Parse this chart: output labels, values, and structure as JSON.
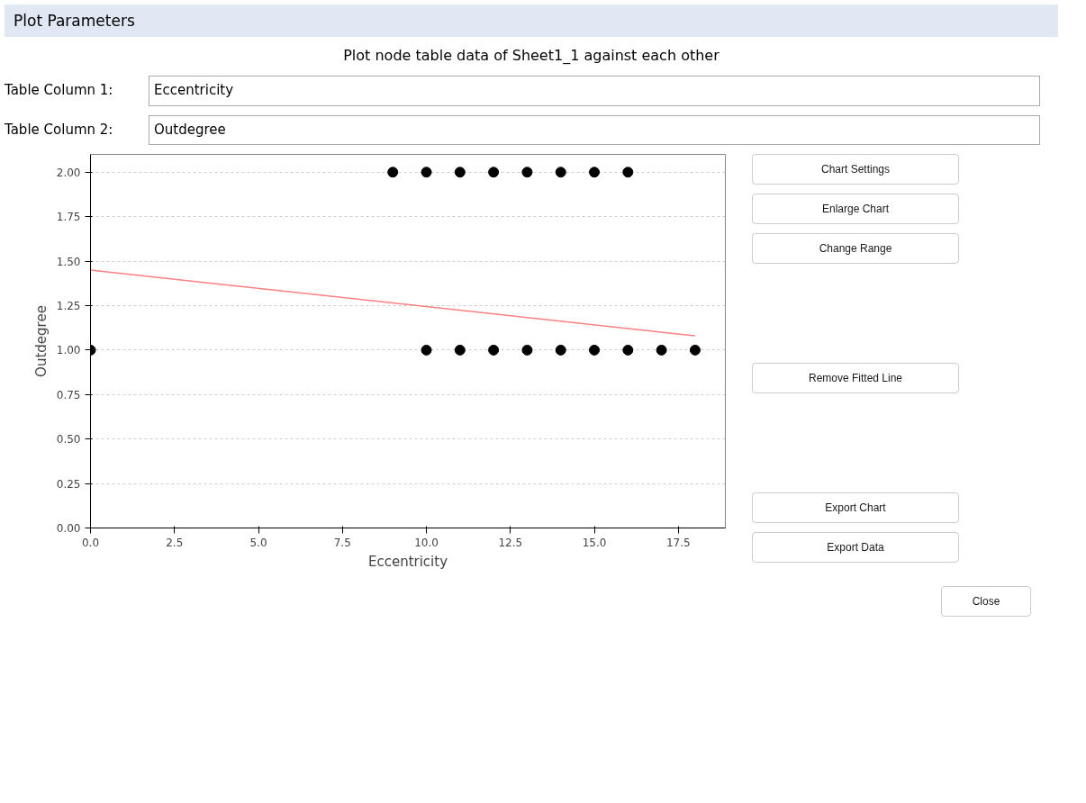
{
  "chart_data": {
    "type": "scatter",
    "title": "Plot node table data of Sheet1_1 against each other",
    "xlabel": "Eccentricity",
    "ylabel": "Outdegree",
    "series": [
      {
        "color": "#000000",
        "marker": "circle",
        "x": [
          9,
          10,
          11,
          12,
          13,
          14,
          15,
          16,
          0,
          10,
          11,
          12,
          13,
          14,
          15,
          16,
          17,
          18
        ],
        "values": [
          2,
          2,
          2,
          2,
          2,
          2,
          2,
          2,
          1,
          1,
          1,
          1,
          1,
          1,
          1,
          1,
          1,
          1
        ]
      },
      {
        "type": "line",
        "color": "#ff8080",
        "line_style": "solid",
        "x": [
          0,
          18
        ],
        "values": [
          1.45,
          1.08
        ]
      }
    ],
    "xlim": [
      0,
      18.9
    ],
    "ylim": [
      0,
      2.1
    ],
    "xticks": [
      {
        "value": 0,
        "label": "0.0"
      },
      {
        "value": 2.5,
        "label": "2.5"
      },
      {
        "value": 5,
        "label": "5.0"
      },
      {
        "value": 7.5,
        "label": "7.5"
      },
      {
        "value": 10,
        "label": "10.0"
      },
      {
        "value": 12.5,
        "label": "12.5"
      },
      {
        "value": 15,
        "label": "15.0"
      },
      {
        "value": 17.5,
        "label": "17.5"
      }
    ],
    "yticks": [
      {
        "value": 0,
        "label": "0.00"
      },
      {
        "value": 0.25,
        "label": "0.25"
      },
      {
        "value": 0.5,
        "label": "0.50"
      },
      {
        "value": 0.75,
        "label": "0.75"
      },
      {
        "value": 1,
        "label": "1.00"
      },
      {
        "value": 1.25,
        "label": "1.25"
      },
      {
        "value": 1.5,
        "label": "1.50"
      },
      {
        "value": 1.75,
        "label": "1.75"
      },
      {
        "value": 2,
        "label": "2.00"
      }
    ],
    "grid": "y",
    "annotations": [
      "Plot Parameters",
      "Table Column 1:",
      "Eccentricity",
      "Table Column 2:",
      "Outdegree",
      "Chart Settings",
      "Enlarge Chart",
      "Change Range",
      "Remove Fitted Line",
      "Export Chart",
      "Export Data",
      "Close"
    ]
  }
}
